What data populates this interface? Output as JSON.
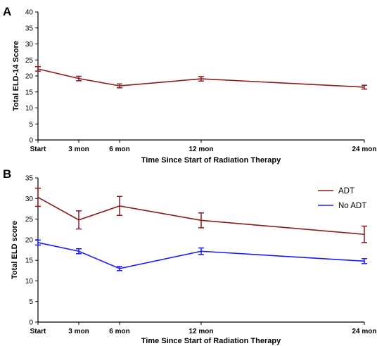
{
  "chart_data": [
    {
      "panel_label": "A",
      "type": "line",
      "x_categories": [
        "Start",
        "3 mon",
        "6 mon",
        "12 mon",
        "24 mon"
      ],
      "x_months": [
        0,
        3,
        6,
        12,
        24
      ],
      "xlabel": "Time Since Start of Radiation Therapy",
      "ylabel": "Total ELD-14 Score",
      "ylim": [
        0,
        40
      ],
      "yticks": [
        0,
        5,
        10,
        15,
        20,
        25,
        30,
        35,
        40
      ],
      "grid": false,
      "series": [
        {
          "color": "#8b1a1a",
          "values": [
            22.2,
            19.2,
            16.9,
            19.1,
            16.5
          ],
          "errors": [
            0.7,
            0.7,
            0.6,
            0.7,
            0.6
          ]
        }
      ]
    },
    {
      "panel_label": "B",
      "type": "line",
      "x_categories": [
        "Start",
        "3 mon",
        "6 mon",
        "12 mon",
        "24 mon"
      ],
      "x_months": [
        0,
        3,
        6,
        12,
        24
      ],
      "xlabel": "Time Since Start of Radiation Therapy",
      "ylabel": "Total ELD score",
      "ylim": [
        0,
        35
      ],
      "yticks": [
        0,
        5,
        10,
        15,
        20,
        25,
        30,
        35
      ],
      "grid": false,
      "legend_position": "top-right",
      "series": [
        {
          "name": "ADT",
          "color": "#8b1a1a",
          "values": [
            30.3,
            24.8,
            28.2,
            24.7,
            21.3
          ],
          "errors": [
            2.2,
            2.2,
            2.3,
            1.8,
            2.0
          ]
        },
        {
          "name": "No ADT",
          "color": "#1a1aff",
          "values": [
            19.3,
            17.2,
            13.0,
            17.2,
            14.8
          ],
          "errors": [
            0.6,
            0.6,
            0.5,
            0.8,
            0.6
          ]
        }
      ]
    }
  ]
}
